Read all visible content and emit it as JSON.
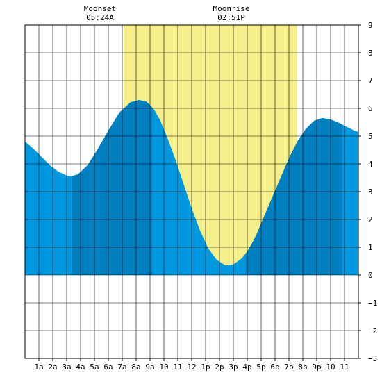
{
  "chart_data": {
    "type": "area",
    "x_tick_labels": [
      "1a",
      "2a",
      "3a",
      "4a",
      "5a",
      "6a",
      "7a",
      "8a",
      "9a",
      "10",
      "11",
      "12",
      "1p",
      "2p",
      "3p",
      "4p",
      "5p",
      "6p",
      "7p",
      "8p",
      "9p",
      "10",
      "11"
    ],
    "y_tick_labels": [
      "9",
      "8",
      "7",
      "6",
      "5",
      "4",
      "3",
      "2",
      "1",
      "0",
      "−1",
      "−2",
      "−3"
    ],
    "ylim": [
      -3,
      9
    ],
    "xlim_hours": [
      0,
      24
    ],
    "grid": true,
    "series": [
      {
        "x_hours": [
          0,
          0.6,
          1.2,
          1.8,
          2.4,
          3.0,
          3.35,
          3.8,
          4.5,
          5.2,
          6.0,
          6.8,
          7.6,
          8.2,
          8.7,
          9.0,
          9.3,
          9.7,
          10.2,
          10.8,
          11.4,
          12.0,
          12.6,
          13.2,
          13.8,
          14.4,
          15.0,
          15.6,
          16.0,
          16.3,
          16.7,
          17.2,
          17.8,
          18.4,
          19.0,
          19.6,
          20.2,
          20.8,
          21.4,
          22.0,
          22.5,
          22.9,
          23.3,
          23.7,
          24.0
        ],
        "y_feet": [
          4.8,
          4.55,
          4.25,
          3.95,
          3.72,
          3.58,
          3.56,
          3.62,
          3.95,
          4.5,
          5.2,
          5.85,
          6.22,
          6.3,
          6.25,
          6.12,
          5.95,
          5.6,
          5.0,
          4.2,
          3.3,
          2.4,
          1.6,
          0.95,
          0.55,
          0.35,
          0.38,
          0.6,
          0.85,
          1.1,
          1.5,
          2.1,
          2.8,
          3.5,
          4.2,
          4.8,
          5.25,
          5.55,
          5.65,
          5.6,
          5.5,
          5.4,
          5.3,
          5.2,
          5.15
        ]
      }
    ],
    "moon": {
      "set_label": "Moonset",
      "set_time": "05:24A",
      "set_hour": 5.4,
      "rise_label": "Moonrise",
      "rise_time": "02:51P",
      "rise_hour": 14.85,
      "moon_up_band_hours": [
        7.1,
        19.6
      ]
    },
    "dark_bands_hours": [
      [
        3.35,
        9.15
      ],
      [
        15.9,
        22.85
      ]
    ],
    "colors": {
      "tide_light": "#0099e0",
      "tide_dark": "#0080c0",
      "moon_band": "#f5f08c",
      "grid": "#000000",
      "background": "#ffffff"
    }
  }
}
